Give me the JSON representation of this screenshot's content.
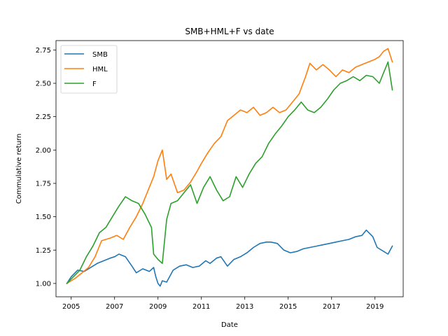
{
  "chart_data": {
    "type": "line",
    "title": "SMB+HML+F vs date",
    "xlabel": "Date",
    "ylabel": "Commulative return",
    "xlim": [
      2004.3,
      2020.3
    ],
    "ylim": [
      0.9,
      2.82
    ],
    "xticks": [
      2005,
      2007,
      2009,
      2011,
      2013,
      2015,
      2017,
      2019
    ],
    "yticks": [
      1.0,
      1.25,
      1.5,
      1.75,
      2.0,
      2.25,
      2.5,
      2.75
    ],
    "ytick_labels": [
      "1.00",
      "1.25",
      "1.50",
      "1.75",
      "2.00",
      "2.25",
      "2.50",
      "2.75"
    ],
    "legend": "upper-left",
    "grid": false,
    "colors": {
      "SMB": "#1f77b4",
      "HML": "#ff7f0e",
      "F": "#2ca02c"
    },
    "series": [
      {
        "name": "SMB",
        "x": [
          2004.8,
          2005.0,
          2005.3,
          2005.6,
          2005.9,
          2006.2,
          2006.5,
          2006.8,
          2007.0,
          2007.2,
          2007.5,
          2007.8,
          2008.0,
          2008.3,
          2008.6,
          2008.8,
          2008.9,
          2009.0,
          2009.1,
          2009.2,
          2009.4,
          2009.7,
          2010.0,
          2010.3,
          2010.6,
          2010.9,
          2011.2,
          2011.4,
          2011.7,
          2011.9,
          2012.2,
          2012.5,
          2012.8,
          2013.1,
          2013.4,
          2013.7,
          2014.0,
          2014.2,
          2014.5,
          2014.8,
          2015.1,
          2015.4,
          2015.7,
          2016.0,
          2016.3,
          2016.6,
          2016.9,
          2017.2,
          2017.5,
          2017.8,
          2018.1,
          2018.4,
          2018.6,
          2018.9,
          2019.1,
          2019.4,
          2019.6,
          2019.8
        ],
        "values": [
          1.0,
          1.05,
          1.1,
          1.09,
          1.12,
          1.15,
          1.17,
          1.19,
          1.2,
          1.22,
          1.2,
          1.13,
          1.08,
          1.11,
          1.09,
          1.12,
          1.05,
          1.0,
          0.98,
          1.02,
          1.01,
          1.1,
          1.13,
          1.14,
          1.12,
          1.13,
          1.17,
          1.15,
          1.19,
          1.2,
          1.13,
          1.18,
          1.2,
          1.23,
          1.27,
          1.3,
          1.31,
          1.31,
          1.3,
          1.25,
          1.23,
          1.24,
          1.26,
          1.27,
          1.28,
          1.29,
          1.3,
          1.31,
          1.32,
          1.33,
          1.35,
          1.36,
          1.4,
          1.35,
          1.27,
          1.24,
          1.22,
          1.28
        ]
      },
      {
        "name": "HML",
        "x": [
          2004.8,
          2005.2,
          2005.5,
          2005.8,
          2006.1,
          2006.4,
          2006.8,
          2007.1,
          2007.4,
          2007.7,
          2008.0,
          2008.3,
          2008.6,
          2008.8,
          2009.0,
          2009.2,
          2009.4,
          2009.6,
          2009.9,
          2010.2,
          2010.5,
          2010.8,
          2011.0,
          2011.3,
          2011.6,
          2011.9,
          2012.2,
          2012.5,
          2012.8,
          2013.1,
          2013.4,
          2013.7,
          2014.0,
          2014.3,
          2014.6,
          2014.9,
          2015.2,
          2015.5,
          2015.8,
          2016.0,
          2016.3,
          2016.6,
          2016.9,
          2017.2,
          2017.5,
          2017.8,
          2018.1,
          2018.4,
          2018.7,
          2019.0,
          2019.2,
          2019.4,
          2019.6,
          2019.8
        ],
        "values": [
          1.0,
          1.04,
          1.08,
          1.12,
          1.2,
          1.32,
          1.34,
          1.36,
          1.33,
          1.42,
          1.5,
          1.6,
          1.72,
          1.8,
          1.92,
          2.0,
          1.78,
          1.82,
          1.68,
          1.7,
          1.76,
          1.84,
          1.9,
          1.98,
          2.05,
          2.1,
          2.22,
          2.26,
          2.3,
          2.28,
          2.32,
          2.26,
          2.28,
          2.32,
          2.28,
          2.3,
          2.36,
          2.42,
          2.55,
          2.65,
          2.6,
          2.64,
          2.6,
          2.55,
          2.6,
          2.58,
          2.62,
          2.64,
          2.66,
          2.68,
          2.7,
          2.74,
          2.76,
          2.66
        ]
      },
      {
        "name": "F",
        "x": [
          2004.8,
          2005.1,
          2005.4,
          2005.7,
          2006.0,
          2006.3,
          2006.6,
          2006.9,
          2007.2,
          2007.5,
          2007.8,
          2008.1,
          2008.4,
          2008.7,
          2008.8,
          2009.0,
          2009.2,
          2009.4,
          2009.6,
          2009.9,
          2010.2,
          2010.5,
          2010.8,
          2011.1,
          2011.4,
          2011.7,
          2012.0,
          2012.3,
          2012.6,
          2012.9,
          2013.2,
          2013.5,
          2013.8,
          2014.1,
          2014.4,
          2014.7,
          2015.0,
          2015.3,
          2015.6,
          2015.9,
          2016.2,
          2016.5,
          2016.8,
          2017.1,
          2017.4,
          2017.7,
          2018.0,
          2018.3,
          2018.6,
          2018.9,
          2019.2,
          2019.4,
          2019.6,
          2019.8
        ],
        "values": [
          1.0,
          1.05,
          1.1,
          1.2,
          1.28,
          1.38,
          1.42,
          1.5,
          1.58,
          1.65,
          1.62,
          1.6,
          1.52,
          1.42,
          1.22,
          1.18,
          1.15,
          1.48,
          1.6,
          1.62,
          1.68,
          1.74,
          1.6,
          1.72,
          1.8,
          1.7,
          1.62,
          1.65,
          1.8,
          1.72,
          1.82,
          1.9,
          1.95,
          2.05,
          2.12,
          2.18,
          2.25,
          2.3,
          2.36,
          2.3,
          2.28,
          2.32,
          2.38,
          2.45,
          2.5,
          2.52,
          2.55,
          2.52,
          2.56,
          2.55,
          2.5,
          2.58,
          2.66,
          2.45
        ]
      }
    ]
  }
}
